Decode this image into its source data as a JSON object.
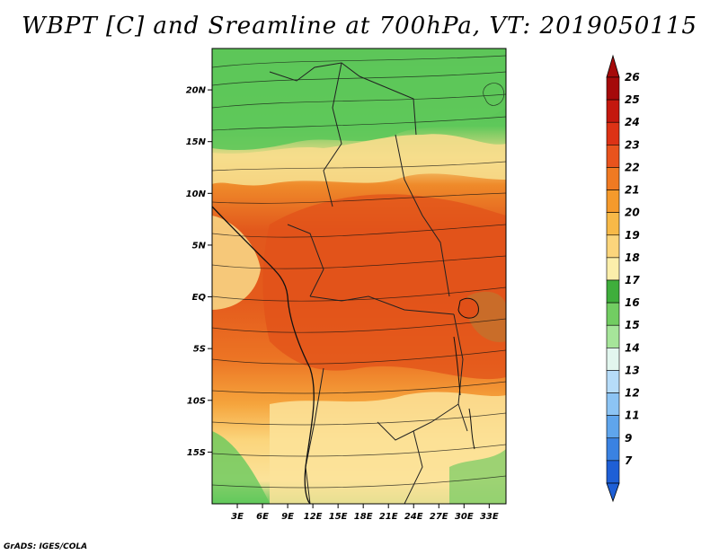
{
  "title": "WBPT [C] and Sreamline at 700hPa, VT: 2019050115",
  "credit": "GrADS: IGES/COLA",
  "map": {
    "lon_range": [
      0,
      35
    ],
    "lat_range": [
      -20,
      24
    ],
    "lat_ticks": [
      {
        "value": 20,
        "label": "20N"
      },
      {
        "value": 15,
        "label": "15N"
      },
      {
        "value": 10,
        "label": "10N"
      },
      {
        "value": 5,
        "label": "5N"
      },
      {
        "value": 0,
        "label": "EQ"
      },
      {
        "value": -5,
        "label": "5S"
      },
      {
        "value": -10,
        "label": "10S"
      },
      {
        "value": -15,
        "label": "15S"
      }
    ],
    "lon_ticks": [
      {
        "value": 3,
        "label": "3E"
      },
      {
        "value": 6,
        "label": "6E"
      },
      {
        "value": 9,
        "label": "9E"
      },
      {
        "value": 12,
        "label": "12E"
      },
      {
        "value": 15,
        "label": "15E"
      },
      {
        "value": 18,
        "label": "18E"
      },
      {
        "value": 21,
        "label": "21E"
      },
      {
        "value": 24,
        "label": "24E"
      },
      {
        "value": 27,
        "label": "27E"
      },
      {
        "value": 30,
        "label": "30E"
      },
      {
        "value": 33,
        "label": "33E"
      }
    ],
    "regions": [
      {
        "name": "north-green-zone",
        "lat_top": 24,
        "lat_bottom": 14.5,
        "color": "#5ec85a"
      },
      {
        "name": "yellow-transition",
        "lat_top": 16,
        "lat_bottom": 12,
        "color": "#f2e08a"
      },
      {
        "name": "red-belt",
        "lat_top": 12,
        "lat_bottom": -7,
        "color": "#e86a1c"
      },
      {
        "name": "orange-south",
        "lat_top": -7,
        "lat_bottom": -12,
        "color": "#f5a33a"
      },
      {
        "name": "yellow-south",
        "lat_top": -11,
        "lat_bottom": -20,
        "color": "#fbe39a"
      }
    ]
  },
  "colorbar": {
    "levels": [
      {
        "label": "26",
        "color": "#a50a0a"
      },
      {
        "label": "25",
        "color": "#c4180e"
      },
      {
        "label": "24",
        "color": "#dd3215"
      },
      {
        "label": "23",
        "color": "#e8531d"
      },
      {
        "label": "22",
        "color": "#f07a22"
      },
      {
        "label": "21",
        "color": "#f59a2c"
      },
      {
        "label": "20",
        "color": "#f7b948"
      },
      {
        "label": "19",
        "color": "#fbd57c"
      },
      {
        "label": "18",
        "color": "#fbeeab"
      },
      {
        "label": "17",
        "color": "#3fae3c"
      },
      {
        "label": "16",
        "color": "#72cd62"
      },
      {
        "label": "15",
        "color": "#a6e59a"
      },
      {
        "label": "14",
        "color": "#e2f6ee"
      },
      {
        "label": "13",
        "color": "#b6dcf9"
      },
      {
        "label": "12",
        "color": "#8cc4f4"
      },
      {
        "label": "11",
        "color": "#5fa5ec"
      },
      {
        "label": "9",
        "color": "#3a82e2"
      },
      {
        "label": "7",
        "color": "#1e5fd6"
      }
    ],
    "top_arrow_color": "#a50a0a",
    "bottom_arrow_color": "#1e5fd6"
  }
}
